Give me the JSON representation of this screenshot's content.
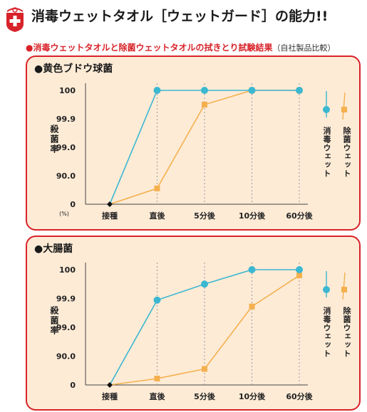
{
  "header": {
    "title": "消毒ウェットタオル［ウェットガード］の能力!!",
    "subtitle": "●消毒ウェットタオルと除菌ウェットタオルの拭きとり試験結果",
    "subtitle_note": "（自社製品比較）"
  },
  "colors": {
    "series_a": "#3bb7d1",
    "series_b": "#f5b04e",
    "panel_bg": "#fdebd6",
    "accent_red": "#d8232a"
  },
  "chart_data": [
    {
      "type": "line",
      "title": "●黄色ブドウ球菌",
      "ylabel": "殺菌率",
      "yunit": "(%)",
      "categories": [
        "接種",
        "直後",
        "5分後",
        "10分後",
        "60分後"
      ],
      "y_ticks": [
        "0",
        "90.0",
        "99.0",
        "99.9",
        "100"
      ],
      "grid": "vertical dashed",
      "legend_position": "right",
      "series": [
        {
          "name": "消毒ウェット",
          "values": [
            0,
            100,
            100,
            100,
            100
          ]
        },
        {
          "name": "除菌ウェット",
          "values": [
            0,
            50,
            99.95,
            100,
            100
          ]
        }
      ]
    },
    {
      "type": "line",
      "title": "●大腸菌",
      "ylabel": "殺菌率",
      "yunit": "",
      "categories": [
        "接種",
        "直後",
        "5分後",
        "10分後",
        "60分後"
      ],
      "y_ticks": [
        "0",
        "90.0",
        "99.0",
        "99.9",
        "100"
      ],
      "grid": "vertical dashed",
      "legend_position": "right",
      "series": [
        {
          "name": "消毒ウェット",
          "values": [
            0,
            99.85,
            99.95,
            100,
            100
          ]
        },
        {
          "name": "除菌ウェット",
          "values": [
            0,
            20,
            50,
            99.65,
            99.98
          ]
        }
      ]
    }
  ]
}
